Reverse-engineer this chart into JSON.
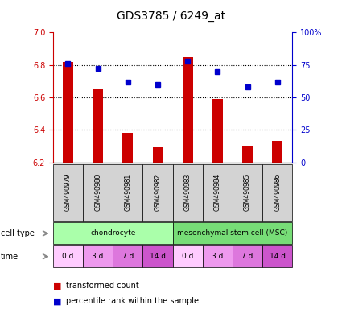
{
  "title": "GDS3785 / 6249_at",
  "samples": [
    "GSM490979",
    "GSM490980",
    "GSM490981",
    "GSM490982",
    "GSM490983",
    "GSM490984",
    "GSM490985",
    "GSM490986"
  ],
  "bar_values": [
    6.82,
    6.65,
    6.38,
    6.29,
    6.85,
    6.59,
    6.3,
    6.33
  ],
  "percentile_values": [
    76,
    72,
    62,
    60,
    78,
    70,
    58,
    62
  ],
  "ylim_left": [
    6.2,
    7.0
  ],
  "ylim_right": [
    0,
    100
  ],
  "yticks_left": [
    6.2,
    6.4,
    6.6,
    6.8,
    7.0
  ],
  "yticks_right": [
    0,
    25,
    50,
    75,
    100
  ],
  "ytick_right_labels": [
    "0",
    "25",
    "50",
    "75",
    "100%"
  ],
  "bar_color": "#cc0000",
  "dot_color": "#0000cc",
  "bar_bottom": 6.2,
  "cell_types": [
    {
      "label": "chondrocyte",
      "start": 0,
      "end": 4,
      "color": "#aaffaa"
    },
    {
      "label": "mesenchymal stem cell (MSC)",
      "start": 4,
      "end": 8,
      "color": "#77dd77"
    }
  ],
  "time_labels": [
    "0 d",
    "3 d",
    "7 d",
    "14 d",
    "0 d",
    "3 d",
    "7 d",
    "14 d"
  ],
  "time_colors": [
    "#ffccff",
    "#ee99ee",
    "#dd77dd",
    "#cc55cc",
    "#ffccff",
    "#ee99ee",
    "#dd77dd",
    "#cc55cc"
  ],
  "sample_bg_color": "#d3d3d3",
  "legend_red_label": "transformed count",
  "legend_blue_label": "percentile rank within the sample",
  "ylabel_left_color": "#cc0000",
  "ylabel_right_color": "#0000cc"
}
